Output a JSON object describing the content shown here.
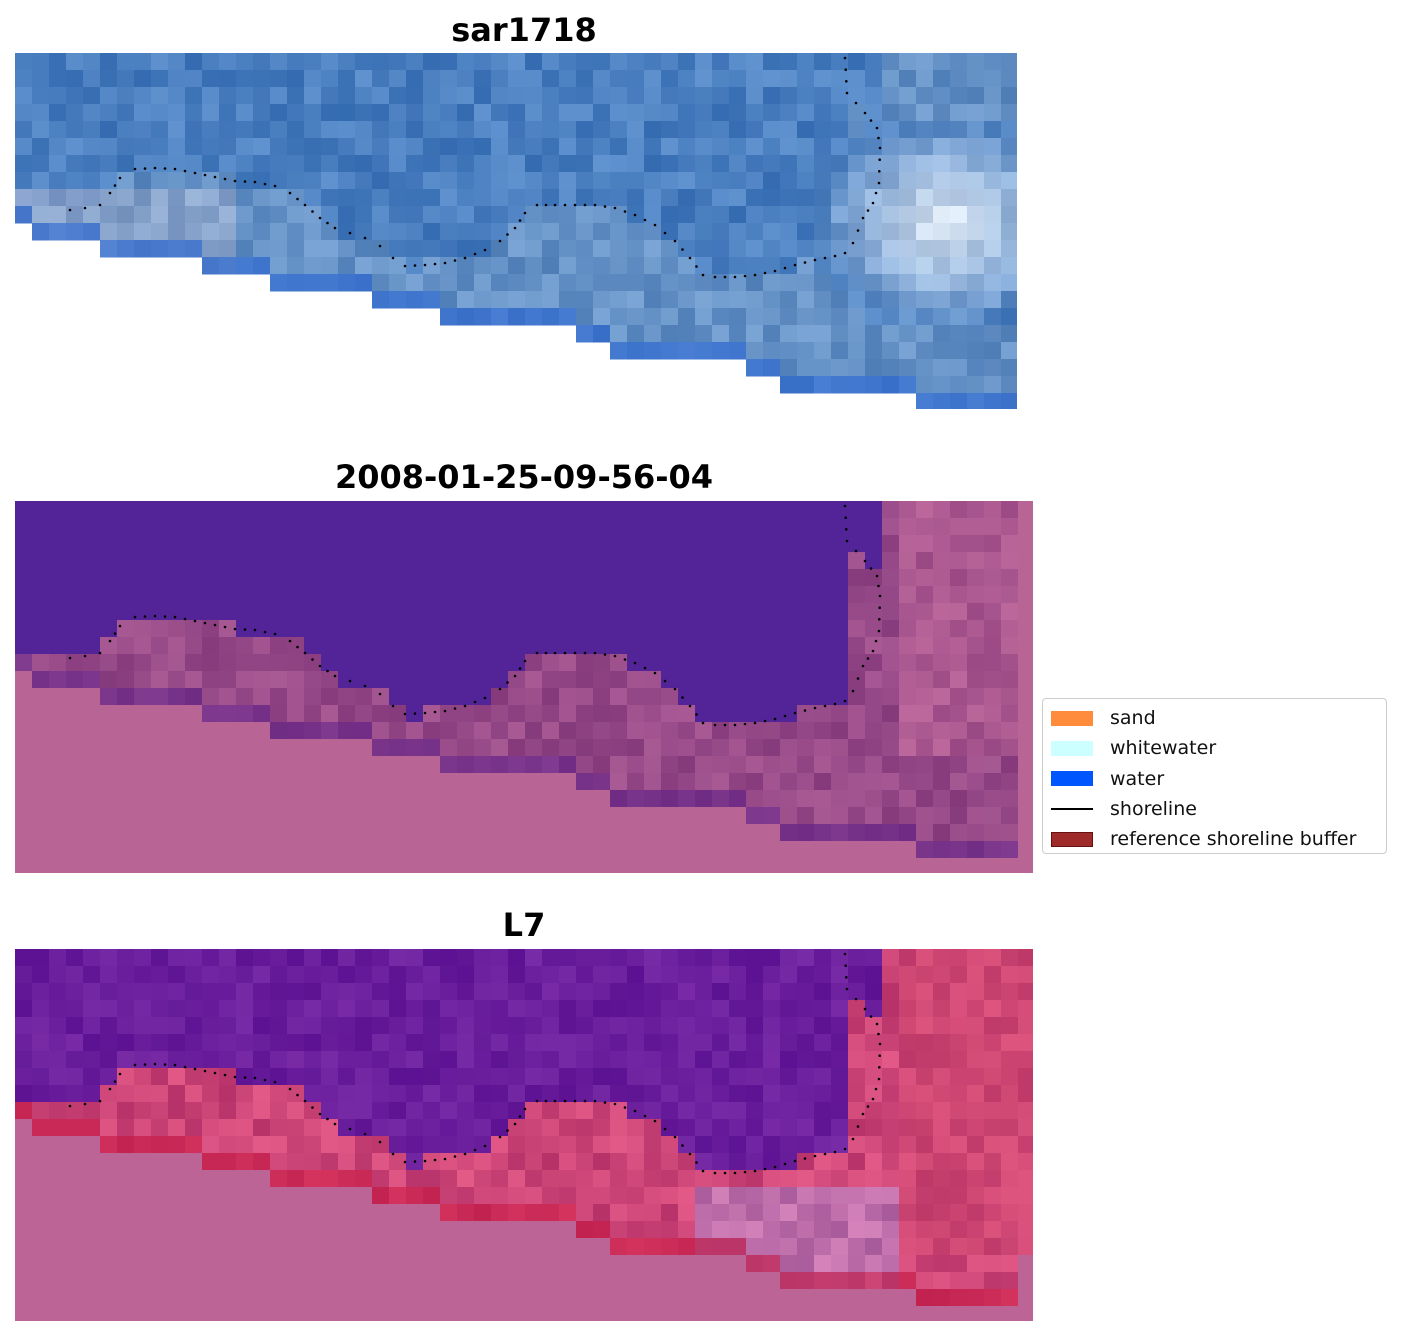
{
  "panels": [
    {
      "title": "sar1718",
      "kind": "sar"
    },
    {
      "title": "2008-01-25-09-56-04",
      "kind": "classified"
    },
    {
      "title": "L7",
      "kind": "l7"
    }
  ],
  "legend": {
    "items": [
      {
        "label": "sand",
        "type": "patch",
        "color": "#ff8c3c"
      },
      {
        "label": "whitewater",
        "type": "patch",
        "color": "#ccffff"
      },
      {
        "label": "water",
        "type": "patch",
        "color": "#0055ff"
      },
      {
        "label": "shoreline",
        "type": "line",
        "color": "#000000"
      },
      {
        "label": "reference shoreline buffer",
        "type": "patch",
        "color": "#9e2a2a",
        "edge": "#6b1010"
      }
    ]
  },
  "colors": {
    "sar_base": "#4a7fc0",
    "classified_water": "#532498",
    "classified_land": "#b86595",
    "l7_water": "#6a1e9c",
    "l7_land": "#bc6496",
    "shoreline": "#000000"
  }
}
